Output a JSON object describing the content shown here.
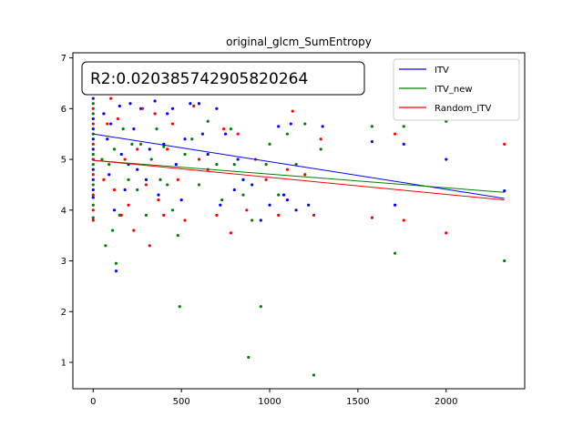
{
  "chart_data": {
    "type": "scatter",
    "title": "original_glcm_SumEntropy",
    "xlabel": "",
    "ylabel": "",
    "xlim": [
      -115,
      2445
    ],
    "ylim": [
      0.48,
      7.1
    ],
    "xticks": [
      0,
      500,
      1000,
      1500,
      2000
    ],
    "yticks": [
      1,
      2,
      3,
      4,
      5,
      6,
      7
    ],
    "grid": false,
    "legend_placement": "top-right",
    "annotation": "R2:0.020385742905820264",
    "colors": {
      "ITV": "#0000ff",
      "ITV_new": "#008000",
      "Random_ITV": "#ff0000"
    },
    "series": [
      {
        "name": "ITV",
        "color": "#0000ff",
        "fit_line": {
          "x": [
            0,
            2330
          ],
          "y": [
            5.5,
            4.23
          ]
        },
        "points": [
          [
            0,
            6.5
          ],
          [
            0,
            6.2
          ],
          [
            0,
            5.8
          ],
          [
            0,
            5.6
          ],
          [
            0,
            5.4
          ],
          [
            0,
            5.2
          ],
          [
            0,
            5.0
          ],
          [
            0,
            4.8
          ],
          [
            0,
            4.6
          ],
          [
            0,
            4.4
          ],
          [
            0,
            4.25
          ],
          [
            60,
            5.9
          ],
          [
            80,
            5.4
          ],
          [
            90,
            4.7
          ],
          [
            100,
            5.7
          ],
          [
            120,
            4.0
          ],
          [
            130,
            2.8
          ],
          [
            150,
            6.05
          ],
          [
            160,
            5.1
          ],
          [
            180,
            4.4
          ],
          [
            200,
            4.9
          ],
          [
            210,
            6.1
          ],
          [
            230,
            5.6
          ],
          [
            250,
            4.8
          ],
          [
            270,
            6.0
          ],
          [
            300,
            4.6
          ],
          [
            320,
            5.2
          ],
          [
            350,
            6.15
          ],
          [
            370,
            4.3
          ],
          [
            400,
            5.3
          ],
          [
            420,
            5.9
          ],
          [
            450,
            6.0
          ],
          [
            470,
            4.9
          ],
          [
            500,
            4.2
          ],
          [
            520,
            5.4
          ],
          [
            550,
            6.1
          ],
          [
            600,
            6.1
          ],
          [
            620,
            5.5
          ],
          [
            650,
            5.1
          ],
          [
            700,
            6.0
          ],
          [
            720,
            4.1
          ],
          [
            750,
            5.5
          ],
          [
            800,
            4.4
          ],
          [
            820,
            5.0
          ],
          [
            850,
            4.6
          ],
          [
            900,
            4.5
          ],
          [
            950,
            3.8
          ],
          [
            1000,
            4.1
          ],
          [
            1050,
            5.65
          ],
          [
            1080,
            4.3
          ],
          [
            1100,
            4.2
          ],
          [
            1120,
            5.7
          ],
          [
            1150,
            4.0
          ],
          [
            1220,
            4.1
          ],
          [
            1300,
            5.65
          ],
          [
            1580,
            5.35
          ],
          [
            1710,
            4.1
          ],
          [
            1760,
            5.3
          ],
          [
            2000,
            5.0
          ],
          [
            2330,
            4.38
          ]
        ]
      },
      {
        "name": "ITV_new",
        "color": "#008000",
        "fit_line": {
          "x": [
            0,
            2330
          ],
          "y": [
            4.98,
            4.35
          ]
        },
        "points": [
          [
            0,
            6.1
          ],
          [
            0,
            5.9
          ],
          [
            0,
            5.5
          ],
          [
            0,
            5.1
          ],
          [
            0,
            4.9
          ],
          [
            0,
            4.5
          ],
          [
            0,
            4.1
          ],
          [
            0,
            3.85
          ],
          [
            50,
            5.0
          ],
          [
            70,
            3.3
          ],
          [
            90,
            4.9
          ],
          [
            110,
            3.6
          ],
          [
            120,
            5.2
          ],
          [
            130,
            2.95
          ],
          [
            150,
            3.9
          ],
          [
            170,
            5.6
          ],
          [
            200,
            4.6
          ],
          [
            220,
            5.3
          ],
          [
            250,
            4.4
          ],
          [
            270,
            5.3
          ],
          [
            300,
            3.9
          ],
          [
            330,
            5.0
          ],
          [
            360,
            5.6
          ],
          [
            380,
            4.6
          ],
          [
            400,
            5.25
          ],
          [
            420,
            4.5
          ],
          [
            450,
            4.0
          ],
          [
            480,
            3.5
          ],
          [
            490,
            2.1
          ],
          [
            520,
            5.1
          ],
          [
            560,
            5.4
          ],
          [
            600,
            4.5
          ],
          [
            650,
            5.75
          ],
          [
            700,
            4.9
          ],
          [
            730,
            4.2
          ],
          [
            780,
            5.6
          ],
          [
            800,
            4.9
          ],
          [
            850,
            4.3
          ],
          [
            880,
            1.1
          ],
          [
            900,
            3.8
          ],
          [
            950,
            2.1
          ],
          [
            980,
            4.9
          ],
          [
            1000,
            5.3
          ],
          [
            1050,
            4.3
          ],
          [
            1100,
            5.5
          ],
          [
            1150,
            4.9
          ],
          [
            1200,
            5.7
          ],
          [
            1250,
            0.75
          ],
          [
            1290,
            5.2
          ],
          [
            1580,
            5.65
          ],
          [
            1710,
            3.15
          ],
          [
            1760,
            5.65
          ],
          [
            2000,
            5.75
          ],
          [
            2330,
            3.0
          ]
        ]
      },
      {
        "name": "Random_ITV",
        "color": "#ff0000",
        "fit_line": {
          "x": [
            0,
            2330
          ],
          "y": [
            4.98,
            4.2
          ]
        },
        "points": [
          [
            0,
            6.4
          ],
          [
            0,
            6.0
          ],
          [
            0,
            5.7
          ],
          [
            0,
            5.3
          ],
          [
            0,
            5.0
          ],
          [
            0,
            4.7
          ],
          [
            0,
            4.3
          ],
          [
            0,
            4.0
          ],
          [
            0,
            3.8
          ],
          [
            60,
            4.6
          ],
          [
            80,
            5.7
          ],
          [
            100,
            6.2
          ],
          [
            120,
            4.4
          ],
          [
            140,
            5.8
          ],
          [
            160,
            3.9
          ],
          [
            180,
            5.0
          ],
          [
            200,
            4.1
          ],
          [
            230,
            3.6
          ],
          [
            250,
            5.2
          ],
          [
            280,
            6.0
          ],
          [
            300,
            4.5
          ],
          [
            320,
            3.3
          ],
          [
            350,
            5.9
          ],
          [
            370,
            4.2
          ],
          [
            400,
            3.9
          ],
          [
            420,
            5.2
          ],
          [
            450,
            5.7
          ],
          [
            480,
            4.6
          ],
          [
            520,
            3.8
          ],
          [
            570,
            6.05
          ],
          [
            600,
            5.0
          ],
          [
            650,
            4.8
          ],
          [
            700,
            3.9
          ],
          [
            740,
            5.6
          ],
          [
            780,
            3.55
          ],
          [
            820,
            5.5
          ],
          [
            870,
            4.0
          ],
          [
            920,
            5.0
          ],
          [
            980,
            4.6
          ],
          [
            1050,
            3.9
          ],
          [
            1100,
            4.8
          ],
          [
            1130,
            5.95
          ],
          [
            1200,
            4.7
          ],
          [
            1250,
            3.9
          ],
          [
            1290,
            5.4
          ],
          [
            1580,
            3.85
          ],
          [
            1710,
            5.5
          ],
          [
            1760,
            3.8
          ],
          [
            2000,
            3.55
          ],
          [
            2330,
            5.3
          ]
        ]
      }
    ]
  }
}
